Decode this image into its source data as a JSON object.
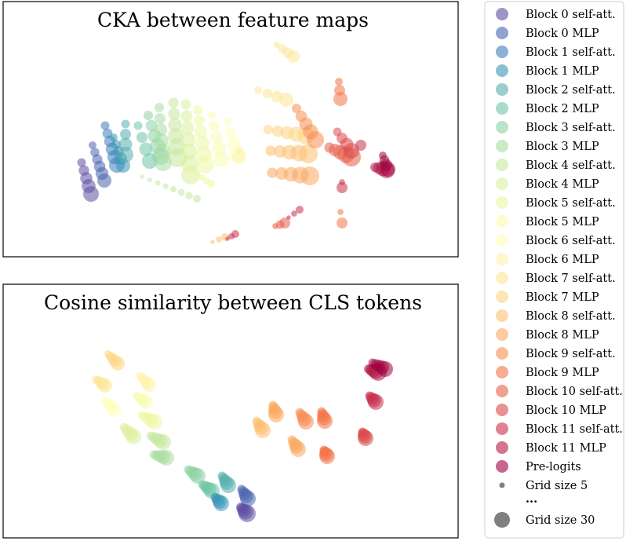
{
  "chart_data": [
    {
      "type": "scatter",
      "title": "CKA between feature maps",
      "grid": false,
      "axes_visible": false,
      "point_groups": [
        {
          "series": 0,
          "start": [
            104,
            207
          ],
          "step": [
            3,
            10
          ],
          "count": 5,
          "max_size": 10
        },
        {
          "series": 1,
          "start": [
            118,
            185
          ],
          "step": [
            3,
            9
          ],
          "count": 6,
          "max_size": 9
        },
        {
          "series": 2,
          "start": [
            134,
            160
          ],
          "step": [
            3,
            10
          ],
          "count": 6,
          "max_size": 10
        },
        {
          "series": 3,
          "start": [
            145,
            175
          ],
          "step": [
            3,
            9
          ],
          "count": 5,
          "max_size": 9
        },
        {
          "series": 4,
          "start": [
            160,
            158
          ],
          "step": [
            0,
            13
          ],
          "count": 4,
          "max_size": 10
        },
        {
          "series": 5,
          "start": [
            176,
            160
          ],
          "step": [
            5,
            15
          ],
          "count": 4,
          "max_size": 10
        },
        {
          "series": 6,
          "start": [
            189,
            147
          ],
          "step": [
            4,
            13
          ],
          "count": 5,
          "max_size": 11
        },
        {
          "series": 7,
          "start": [
            203,
            137
          ],
          "step": [
            1,
            14
          ],
          "count": 6,
          "max_size": 11
        },
        {
          "series": 8,
          "start": [
            221,
            131
          ],
          "step": [
            1,
            14
          ],
          "count": 6,
          "max_size": 12
        },
        {
          "series": 9,
          "start": [
            237,
            133
          ],
          "step": [
            1,
            15
          ],
          "count": 7,
          "max_size": 12
        },
        {
          "series": 10,
          "start": [
            252,
            140
          ],
          "step": [
            2,
            14
          ],
          "count": 6,
          "max_size": 11
        },
        {
          "series": 11,
          "start": [
            270,
            147
          ],
          "step": [
            3,
            14
          ],
          "count": 5,
          "max_size": 10
        },
        {
          "series": 12,
          "start": [
            290,
            155
          ],
          "step": [
            4,
            14
          ],
          "count": 4,
          "max_size": 10
        },
        {
          "series": 13,
          "start": [
            305,
            191
          ],
          "step": [
            0,
            9
          ],
          "count": 2,
          "max_size": 9
        },
        {
          "series": 14,
          "start": [
            353,
            57
          ],
          "step": [
            7,
            5
          ],
          "count": 4,
          "max_size": 8
        },
        {
          "series": 14,
          "start": [
            329,
            115
          ],
          "step": [
            12,
            4
          ],
          "count": 4,
          "max_size": 9
        },
        {
          "series": 15,
          "start": [
            342,
            165
          ],
          "step": [
            12,
            2
          ],
          "count": 5,
          "max_size": 11
        },
        {
          "series": 16,
          "start": [
            345,
            192
          ],
          "step": [
            12,
            1
          ],
          "count": 5,
          "max_size": 12
        },
        {
          "series": 17,
          "start": [
            347,
            220
          ],
          "step": [
            12,
            1
          ],
          "count": 5,
          "max_size": 12
        },
        {
          "series": 18,
          "start": [
            378,
            138
          ],
          "step": [
            6,
            10
          ],
          "count": 5,
          "max_size": 11
        },
        {
          "series": 19,
          "start": [
            432,
            104
          ],
          "step": [
            1,
            11
          ],
          "count": 3,
          "max_size": 9
        },
        {
          "series": 20,
          "start": [
            420,
            188
          ],
          "step": [
            7,
            3
          ],
          "count": 5,
          "max_size": 12
        },
        {
          "series": 21,
          "start": [
            430,
            168
          ],
          "step": [
            6,
            8
          ],
          "count": 4,
          "max_size": 10
        },
        {
          "series": 22,
          "start": [
            460,
            185
          ],
          "step": [
            0,
            0
          ],
          "count": 1,
          "max_size": 7
        },
        {
          "series": 22,
          "start": [
            436,
            232
          ],
          "step": [
            0,
            7
          ],
          "count": 2,
          "max_size": 7
        },
        {
          "series": 23,
          "start": [
            478,
            213
          ],
          "step": [
            5,
            1
          ],
          "count": 4,
          "max_size": 11
        },
        {
          "series": 24,
          "start": [
            488,
            198
          ],
          "step": [
            2,
            6
          ],
          "count": 4,
          "max_size": 9
        },
        {
          "series": 20,
          "start": [
            351,
            288
          ],
          "step": [
            6,
            -2
          ],
          "count": 3,
          "max_size": 7
        },
        {
          "series": 22,
          "start": [
            368,
            277
          ],
          "step": [
            7,
            -5
          ],
          "count": 3,
          "max_size": 5
        },
        {
          "series": 19,
          "start": [
            434,
            270
          ],
          "step": [
            2,
            14
          ],
          "count": 2,
          "max_size": 7
        },
        {
          "series": 16,
          "start": [
            271,
            308
          ],
          "step": [
            8,
            -3
          ],
          "count": 3,
          "max_size": 5
        },
        {
          "series": 22,
          "start": [
            290,
            304
          ],
          "step": [
            5,
            -3
          ],
          "count": 3,
          "max_size": 5
        },
        {
          "series": 8,
          "start": [
            181,
            225
          ],
          "step": [
            10,
            4
          ],
          "count": 8,
          "max_size": 5
        },
        {
          "series": 10,
          "start": [
            239,
            214
          ],
          "step": [
            6,
            4
          ],
          "count": 6,
          "max_size": 5
        }
      ]
    },
    {
      "type": "scatter",
      "title": "Cosine similarity between CLS tokens",
      "grid": false,
      "axes_visible": false,
      "point_groups": [
        {
          "series": 15,
          "start": [
            138,
            451
          ],
          "step": [
            3,
            3
          ],
          "count": 5,
          "max_size": 9
        },
        {
          "series": 14,
          "start": [
            122,
            483
          ],
          "step": [
            3,
            2
          ],
          "count": 5,
          "max_size": 9
        },
        {
          "series": 13,
          "start": [
            178,
            478
          ],
          "step": [
            3,
            3
          ],
          "count": 5,
          "max_size": 9
        },
        {
          "series": 12,
          "start": [
            134,
            510
          ],
          "step": [
            3,
            3
          ],
          "count": 5,
          "max_size": 9
        },
        {
          "series": 11,
          "start": [
            174,
            504
          ],
          "step": [
            3,
            2
          ],
          "count": 5,
          "max_size": 9
        },
        {
          "series": 10,
          "start": [
            181,
            529
          ],
          "step": [
            4,
            2
          ],
          "count": 5,
          "max_size": 10
        },
        {
          "series": 9,
          "start": [
            158,
            544
          ],
          "step": [
            3,
            3
          ],
          "count": 5,
          "max_size": 10
        },
        {
          "series": 8,
          "start": [
            192,
            555
          ],
          "step": [
            4,
            2
          ],
          "count": 5,
          "max_size": 10
        },
        {
          "series": 7,
          "start": [
            196,
            579
          ],
          "step": [
            4,
            1
          ],
          "count": 5,
          "max_size": 10
        },
        {
          "series": 6,
          "start": [
            240,
            598
          ],
          "step": [
            3,
            2
          ],
          "count": 5,
          "max_size": 10
        },
        {
          "series": 5,
          "start": [
            258,
            617
          ],
          "step": [
            3,
            2
          ],
          "count": 5,
          "max_size": 10
        },
        {
          "series": 4,
          "start": [
            283,
            606
          ],
          "step": [
            2,
            3
          ],
          "count": 5,
          "max_size": 10
        },
        {
          "series": 3,
          "start": [
            274,
            633
          ],
          "step": [
            2,
            2
          ],
          "count": 5,
          "max_size": 10
        },
        {
          "series": 1,
          "start": [
            308,
            623
          ],
          "step": [
            2,
            3
          ],
          "count": 5,
          "max_size": 10
        },
        {
          "series": 0,
          "start": [
            307,
            646
          ],
          "step": [
            2,
            2
          ],
          "count": 5,
          "max_size": 11
        },
        {
          "series": 16,
          "start": [
            327,
            536
          ],
          "step": [
            2,
            3
          ],
          "count": 5,
          "max_size": 10
        },
        {
          "series": 17,
          "start": [
            348,
            516
          ],
          "step": [
            1,
            3
          ],
          "count": 5,
          "max_size": 10
        },
        {
          "series": 17,
          "start": [
            372,
            560
          ],
          "step": [
            2,
            3
          ],
          "count": 5,
          "max_size": 10
        },
        {
          "series": 18,
          "start": [
            382,
            525
          ],
          "step": [
            2,
            3
          ],
          "count": 5,
          "max_size": 10
        },
        {
          "series": 19,
          "start": [
            410,
            524
          ],
          "step": [
            1,
            3
          ],
          "count": 5,
          "max_size": 10
        },
        {
          "series": 19,
          "start": [
            413,
            573
          ],
          "step": [
            1,
            2
          ],
          "count": 5,
          "max_size": 10
        },
        {
          "series": 21,
          "start": [
            462,
            550
          ],
          "step": [
            1,
            2
          ],
          "count": 5,
          "max_size": 10
        },
        {
          "series": 22,
          "start": [
            471,
            504
          ],
          "step": [
            2,
            2
          ],
          "count": 5,
          "max_size": 10
        },
        {
          "series": 23,
          "start": [
            470,
            470
          ],
          "step": [
            3,
            1
          ],
          "count": 5,
          "max_size": 11
        },
        {
          "series": 24,
          "start": [
            475,
            462
          ],
          "step": [
            4,
            2
          ],
          "count": 5,
          "max_size": 10
        }
      ]
    }
  ],
  "legend": {
    "placement": "right",
    "entries": [
      {
        "label": "Block 0 self-att.",
        "color": "#5e4fa2"
      },
      {
        "label": "Block 0 MLP",
        "color": "#4a64ad"
      },
      {
        "label": "Block 1 self-att.",
        "color": "#3b7eb9"
      },
      {
        "label": "Block 1 MLP",
        "color": "#3a97b7"
      },
      {
        "label": "Block 2 self-att.",
        "color": "#54aead"
      },
      {
        "label": "Block 2 MLP",
        "color": "#6ec4a5"
      },
      {
        "label": "Block 3 self-att.",
        "color": "#8cd2a4"
      },
      {
        "label": "Block 3 MLP",
        "color": "#a9dda2"
      },
      {
        "label": "Block 4 self-att.",
        "color": "#c4e79c"
      },
      {
        "label": "Block 4 MLP",
        "color": "#dcf09c"
      },
      {
        "label": "Block 5 self-att.",
        "color": "#edf7a2"
      },
      {
        "label": "Block 5 MLP",
        "color": "#f8fbb0"
      },
      {
        "label": "Block 6 self-att.",
        "color": "#fffdbb"
      },
      {
        "label": "Block 6 MLP",
        "color": "#fff2a9"
      },
      {
        "label": "Block 7 self-att.",
        "color": "#fee595"
      },
      {
        "label": "Block 7 MLP",
        "color": "#fed681"
      },
      {
        "label": "Block 8 self-att.",
        "color": "#fdc070"
      },
      {
        "label": "Block 8 MLP",
        "color": "#fca85e"
      },
      {
        "label": "Block 9 self-att.",
        "color": "#f88e52"
      },
      {
        "label": "Block 9 MLP",
        "color": "#f37547"
      },
      {
        "label": "Block 10 self-att.",
        "color": "#e65f4a"
      },
      {
        "label": "Block 10 MLP",
        "color": "#da4a4b"
      },
      {
        "label": "Block 11 self-att.",
        "color": "#c8304c"
      },
      {
        "label": "Block 11 MLP",
        "color": "#b01b48"
      },
      {
        "label": "Pre-logits",
        "color": "#9e0142"
      }
    ],
    "size_entries": [
      {
        "label": "Grid size 5",
        "grid_size": 5
      },
      {
        "label": "Grid size 30",
        "grid_size": 30
      }
    ],
    "ellipsis": "...",
    "size_color": "#808080"
  }
}
